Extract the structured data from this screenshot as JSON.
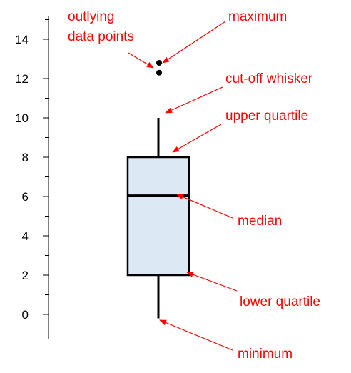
{
  "chart_data": {
    "type": "box",
    "yaxis": {
      "range": [
        -1,
        15.5
      ],
      "ticks": [
        0,
        2,
        4,
        6,
        8,
        10,
        12,
        14
      ],
      "minor_step": 1
    },
    "box": {
      "minimum": -0.2,
      "lower_quartile": 2,
      "median": 6.05,
      "upper_quartile": 8,
      "whisker_top": 10,
      "outliers": [
        12.8,
        12.3
      ]
    }
  },
  "annotations": {
    "outlying_line1": "outlying",
    "outlying_line2": "data points",
    "maximum": "maximum",
    "cut_off_whisker": "cut-off whisker",
    "upper_quartile": "upper quartile",
    "median": "median",
    "lower_quartile": "lower quartile",
    "minimum": "minimum"
  },
  "colors": {
    "annotation": "#ff0000",
    "box_fill": "#dde8f5",
    "box_stroke": "#000000",
    "arrow": "#ff0000"
  }
}
